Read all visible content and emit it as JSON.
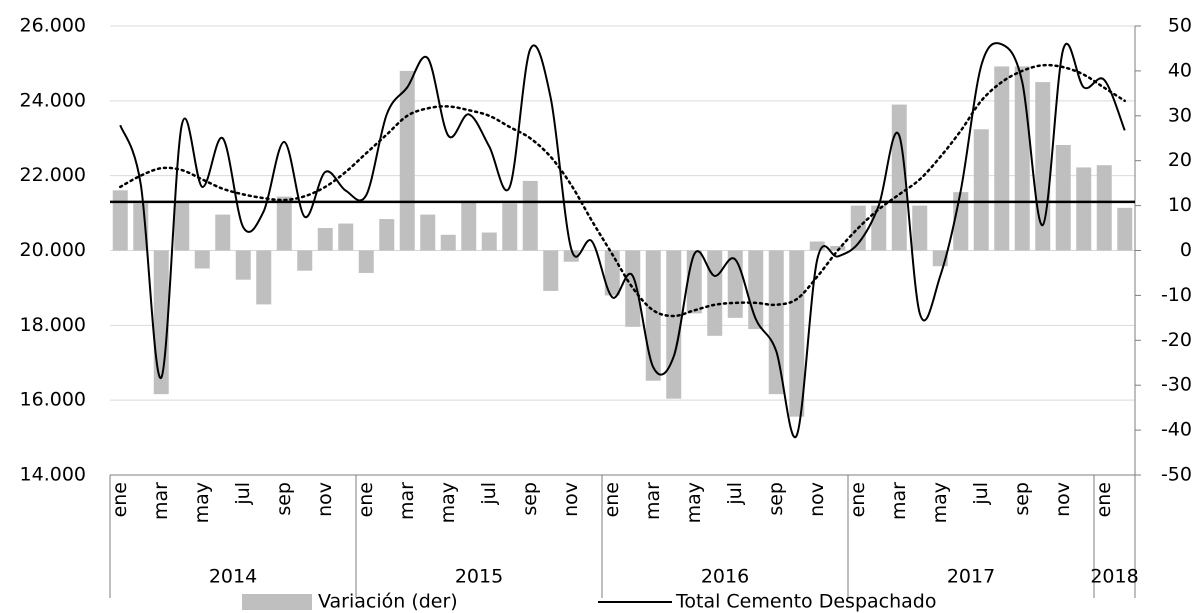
{
  "chart_data": {
    "type": "bar-line",
    "categories": [
      "ene",
      null,
      "mar",
      null,
      "may",
      null,
      "jul",
      null,
      "sep",
      null,
      "nov",
      null,
      "ene",
      null,
      "mar",
      null,
      "may",
      null,
      "jul",
      null,
      "sep",
      null,
      "nov",
      null,
      "ene",
      null,
      "mar",
      null,
      "may",
      null,
      "jul",
      null,
      "sep",
      null,
      "nov",
      null,
      "ene",
      null,
      "mar",
      null,
      "may",
      null,
      "jul",
      null,
      "sep",
      null,
      "nov",
      null,
      "ene",
      null
    ],
    "x_groups": [
      "2014",
      "2015",
      "2016",
      "2017",
      "2018"
    ],
    "series": [
      {
        "name": "Variación (der)",
        "type": "bar",
        "axis": "y2",
        "color": "#bfbfbf",
        "values": [
          13.4,
          10.5,
          -32,
          11,
          -4,
          8,
          -6.5,
          -12,
          12,
          -4.5,
          5,
          6,
          -5,
          7,
          40,
          8,
          3.5,
          11,
          4,
          10.5,
          15.5,
          -9,
          -2.5,
          0,
          -10,
          -17,
          -29,
          -33,
          -14,
          -19,
          -15,
          -17.5,
          -32,
          -37,
          2,
          1,
          10,
          10,
          32.5,
          10,
          -3.5,
          13,
          27,
          41,
          41,
          37.5,
          23.5,
          18.5,
          19,
          9.5
        ]
      },
      {
        "name": "Total Cemento Despachado",
        "type": "line",
        "color": "#000000",
        "dash": "solid",
        "values": [
          23350,
          21770,
          16600,
          23350,
          21700,
          23000,
          20620,
          21050,
          22900,
          20900,
          22100,
          21600,
          21480,
          23640,
          24360,
          25140,
          23070,
          23640,
          22780,
          21700,
          25380,
          24070,
          20040,
          20250,
          18750,
          19320,
          16880,
          17170,
          19900,
          19320,
          19760,
          18170,
          17310,
          15060,
          19760,
          19840,
          20190,
          21200,
          23070,
          18320,
          19320,
          21600,
          24940,
          25510,
          24500,
          20680,
          25380,
          24360,
          24560,
          23210
        ]
      },
      {
        "type": "line",
        "color": "#000000",
        "dash": "dotted",
        "values": [
          21700,
          22000,
          22200,
          22150,
          21900,
          21650,
          21500,
          21400,
          21350,
          21450,
          21700,
          22100,
          22600,
          23100,
          23600,
          23800,
          23850,
          23750,
          23600,
          23300,
          23000,
          22500,
          21750,
          20800,
          19900,
          19000,
          18400,
          18250,
          18400,
          18550,
          18600,
          18600,
          18550,
          18700,
          19300,
          20000,
          20600,
          21100,
          21500,
          21900,
          22500,
          23200,
          24000,
          24500,
          24800,
          24950,
          24900,
          24700,
          24350,
          24000
        ]
      }
    ],
    "reference_line": {
      "value": 21300,
      "color": "#000000"
    },
    "ylim": [
      14000,
      26000
    ],
    "yticks": [
      {
        "value": 14000,
        "label": "14.000"
      },
      {
        "value": 16000,
        "label": "16.000"
      },
      {
        "value": 18000,
        "label": "18.000"
      },
      {
        "value": 20000,
        "label": "20.000"
      },
      {
        "value": 22000,
        "label": "22.000"
      },
      {
        "value": 24000,
        "label": "24.000"
      },
      {
        "value": 26000,
        "label": "26.000"
      }
    ],
    "y2lim": [
      -50,
      50
    ],
    "y2ticks": [
      -50,
      -40,
      -30,
      -20,
      -10,
      0,
      10,
      20,
      30,
      40,
      50
    ],
    "grid": true
  }
}
